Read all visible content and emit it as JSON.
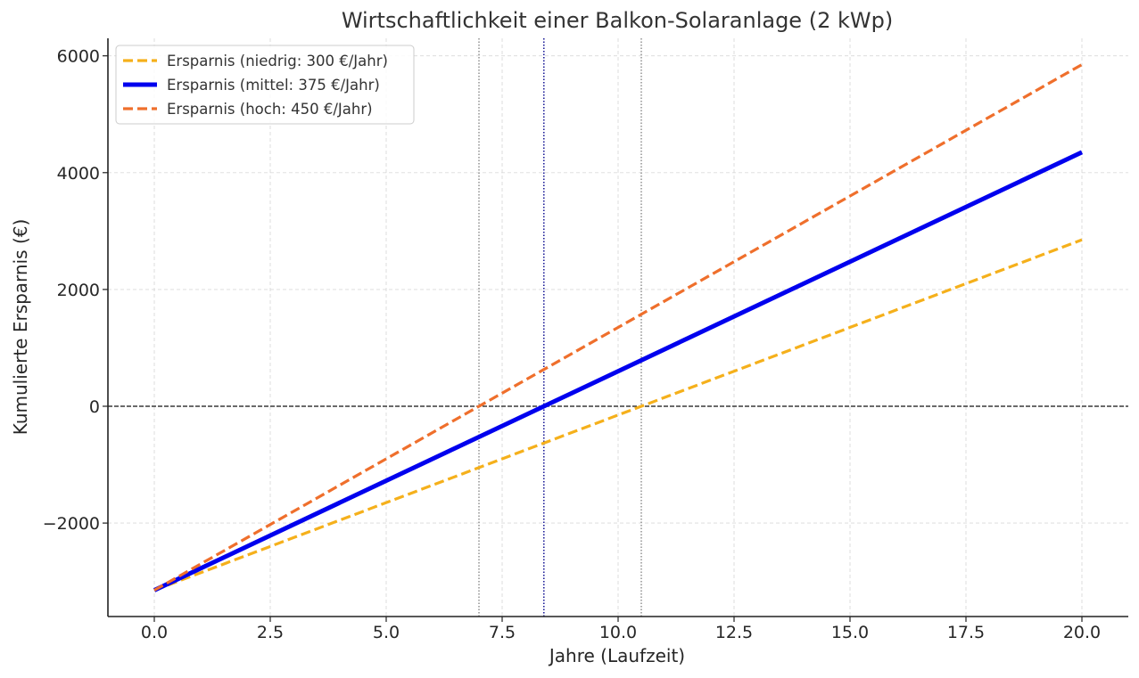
{
  "chart_data": {
    "type": "line",
    "title": "Wirtschaftlichkeit einer Balkon-Solaranlage (2 kWp)",
    "xlabel": "Jahre (Laufzeit)",
    "ylabel": "Kumulierte Ersparnis (€)",
    "xlim": [
      -1,
      21
    ],
    "ylim": [
      -3600,
      6300
    ],
    "xticks": [
      0.0,
      2.5,
      5.0,
      7.5,
      10.0,
      12.5,
      15.0,
      17.5,
      20.0
    ],
    "xtick_labels": [
      "0.0",
      "2.5",
      "5.0",
      "7.5",
      "10.0",
      "12.5",
      "15.0",
      "17.5",
      "20.0"
    ],
    "yticks": [
      -2000,
      0,
      2000,
      4000,
      6000
    ],
    "ytick_labels": [
      "−2000",
      "0",
      "2000",
      "4000",
      "6000"
    ],
    "grid": true,
    "legend_position": "top-left",
    "series": [
      {
        "name": "Ersparnis (niedrig: 300 €/Jahr)",
        "x": [
          0,
          20
        ],
        "y": [
          -3150,
          2850
        ],
        "color": "#f5b01b",
        "style": "dashed"
      },
      {
        "name": "Ersparnis (mittel: 375 €/Jahr)",
        "x": [
          0,
          20
        ],
        "y": [
          -3150,
          4350
        ],
        "color": "#0000ee",
        "style": "solid"
      },
      {
        "name": "Ersparnis (hoch: 450 €/Jahr)",
        "x": [
          0,
          20
        ],
        "y": [
          -3150,
          5850
        ],
        "color": "#ef6f2c",
        "style": "dashed"
      }
    ],
    "hlines": [
      {
        "y": 0,
        "color": "#111111",
        "style": "dashed"
      }
    ],
    "vlines": [
      {
        "x": 7.0,
        "color": "#888888",
        "style": "dotted"
      },
      {
        "x": 8.4,
        "color": "#00008b",
        "style": "dotted"
      },
      {
        "x": 10.5,
        "color": "#888888",
        "style": "dotted"
      }
    ]
  }
}
